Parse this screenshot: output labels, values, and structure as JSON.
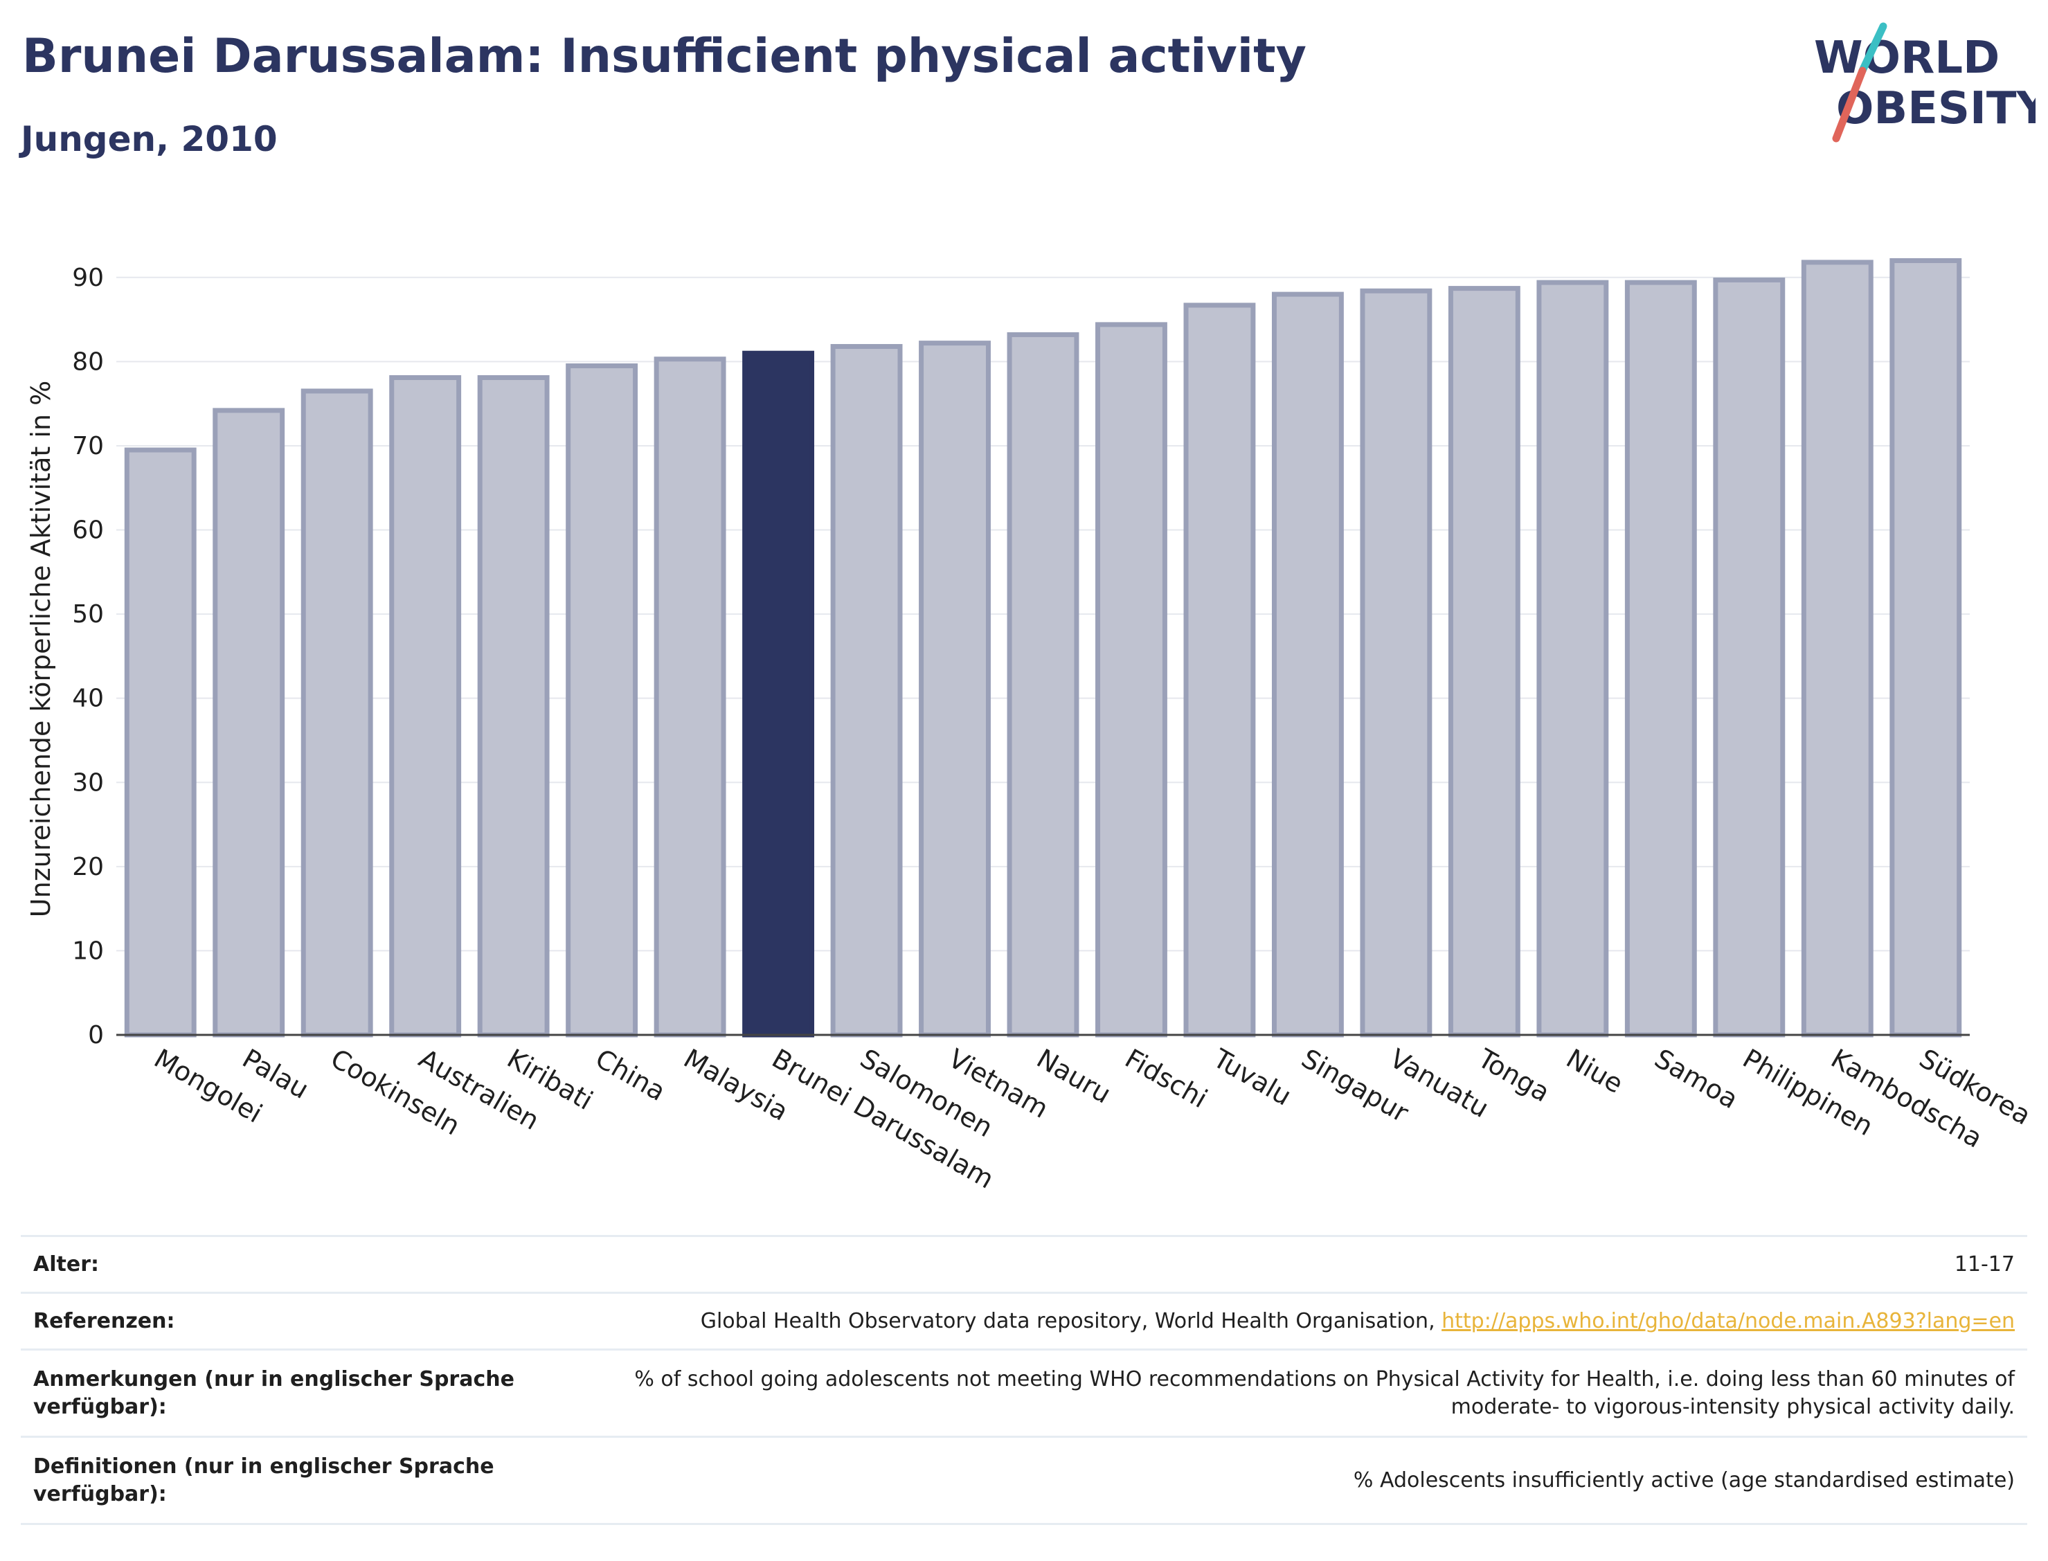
{
  "header": {
    "title": "Brunei Darussalam: Insufficient physical activity",
    "subtitle": "Jungen, 2010"
  },
  "logo": {
    "line1": "WORLD",
    "line2": "OBESITY"
  },
  "colors": {
    "highlight_bar": "#2c3561",
    "other_bar_fill": "#bfc2d0",
    "other_bar_stroke": "#9aa0b8",
    "grid": "#e6e8ee",
    "logo_teal": "#3bbfc4",
    "logo_coral": "#e0655a",
    "link": "#e8b43a"
  },
  "chart_data": {
    "type": "bar",
    "categories": [
      "Mongolei",
      "Palau",
      "Cookinseln",
      "Australien",
      "Kiribati",
      "China",
      "Malaysia",
      "Brunei Darussalam",
      "Salomonen",
      "Vietnam",
      "Nauru",
      "Fidschi",
      "Tuvalu",
      "Singapur",
      "Vanuatu",
      "Tonga",
      "Niue",
      "Samoa",
      "Philippinen",
      "Kambodscha",
      "Südkorea"
    ],
    "values": [
      69.5,
      74.2,
      76.5,
      78.1,
      78.1,
      79.5,
      80.3,
      81.0,
      81.8,
      82.2,
      83.2,
      84.4,
      86.7,
      88.0,
      88.4,
      88.7,
      89.4,
      89.4,
      89.7,
      91.8,
      92.0
    ],
    "highlight": "Brunei Darussalam",
    "ylabel": "Unzureichende körperliche Aktivität in %",
    "xlabel": "",
    "ylim": [
      0,
      95
    ],
    "yticks": [
      0,
      10,
      20,
      30,
      40,
      50,
      60,
      70,
      80,
      90
    ],
    "grid": true
  },
  "info": {
    "rows": [
      {
        "key": "Alter:",
        "value": "11-17"
      },
      {
        "key": "Referenzen:",
        "value": "Global Health Observatory data repository, World Health Organisation, ",
        "link": "http://apps.who.int/gho/data/node.main.A893?lang=en"
      },
      {
        "key": "Anmerkungen (nur in englischer Sprache verfügbar):",
        "value": "% of school going adolescents not meeting WHO recommendations on Physical Activity for Health, i.e. doing less than 60 minutes of moderate- to vigorous-intensity physical activity daily."
      },
      {
        "key": "Definitionen (nur in englischer Sprache verfügbar):",
        "value": "% Adolescents insufficiently active (age standardised estimate)"
      }
    ]
  }
}
